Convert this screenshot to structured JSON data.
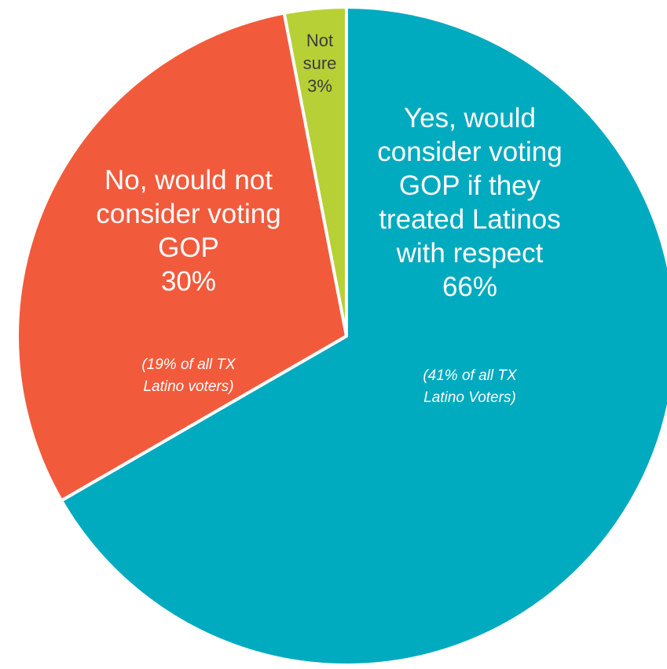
{
  "chart_data": {
    "type": "pie",
    "slices": [
      {
        "label_lines": [
          "Yes, would",
          "consider voting",
          "GOP if they",
          "treated Latinos",
          "with respect",
          "66%"
        ],
        "note_lines": [
          "(41% of all TX",
          "Latino Voters)"
        ],
        "value": 66,
        "color": "#00aabf"
      },
      {
        "label_lines": [
          "No, would not",
          "consider voting",
          "GOP",
          "30%"
        ],
        "note_lines": [
          "(19% of all TX",
          "Latino voters)"
        ],
        "value": 30,
        "color": "#f25a3c"
      },
      {
        "label_lines": [
          "Not",
          "sure",
          "3%"
        ],
        "note_lines": [],
        "value": 3,
        "color": "#b7d036"
      }
    ],
    "start_angle": "12 o'clock",
    "direction": "clockwise",
    "legend": "none"
  }
}
